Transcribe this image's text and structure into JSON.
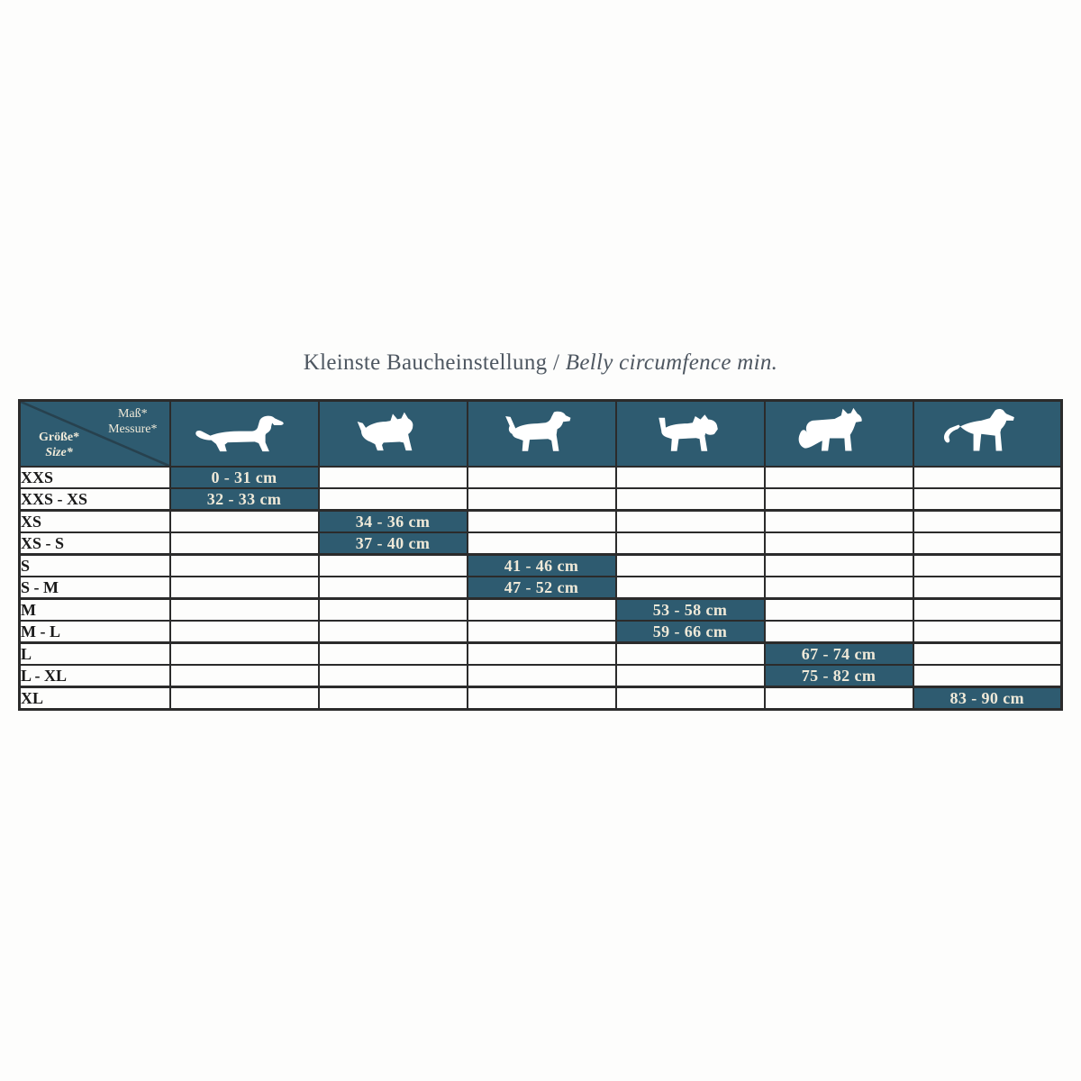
{
  "title": {
    "main": "Kleinste Baucheinstellung /",
    "italic": "Belly circumfence min."
  },
  "table": {
    "corner": {
      "measure_de": "Maß*",
      "measure_en": "Messure*",
      "size_de": "Größe*",
      "size_en": "Size*"
    }
  },
  "chart_data": {
    "type": "table",
    "title": "Kleinste Baucheinstellung / Belly circumfence min.",
    "row_header": "Größe* / Size*",
    "column_header": "Maß* / Messure*",
    "columns": [
      {
        "name": "dachshund",
        "icon": "dachshund-icon"
      },
      {
        "name": "small-terrier",
        "icon": "small-terrier-icon"
      },
      {
        "name": "pointer",
        "icon": "pointer-dog-icon"
      },
      {
        "name": "schnauzer",
        "icon": "schnauzer-icon"
      },
      {
        "name": "husky",
        "icon": "husky-icon"
      },
      {
        "name": "great-dane",
        "icon": "great-dane-icon"
      }
    ],
    "rows": [
      {
        "size": "XXS",
        "column": 0,
        "belly_min": "0 - 31 cm"
      },
      {
        "size": "XXS - XS",
        "column": 0,
        "belly_min": "32 - 33 cm"
      },
      {
        "size": "XS",
        "column": 1,
        "belly_min": "34 - 36 cm"
      },
      {
        "size": "XS - S",
        "column": 1,
        "belly_min": "37 - 40 cm"
      },
      {
        "size": "S",
        "column": 2,
        "belly_min": "41 - 46 cm"
      },
      {
        "size": "S - M",
        "column": 2,
        "belly_min": "47 - 52 cm"
      },
      {
        "size": "M",
        "column": 3,
        "belly_min": "53 - 58 cm"
      },
      {
        "size": "M - L",
        "column": 3,
        "belly_min": "59 - 66 cm"
      },
      {
        "size": "L",
        "column": 4,
        "belly_min": "67 - 74 cm"
      },
      {
        "size": "L - XL",
        "column": 4,
        "belly_min": "75 - 82 cm"
      },
      {
        "size": "XL",
        "column": 5,
        "belly_min": "83 - 90 cm"
      }
    ]
  },
  "colors": {
    "accent_teal": "#2e5b70",
    "cell_text_cream": "#efe9d8",
    "border": "#2b2b2b",
    "title_text": "#4e5761"
  }
}
